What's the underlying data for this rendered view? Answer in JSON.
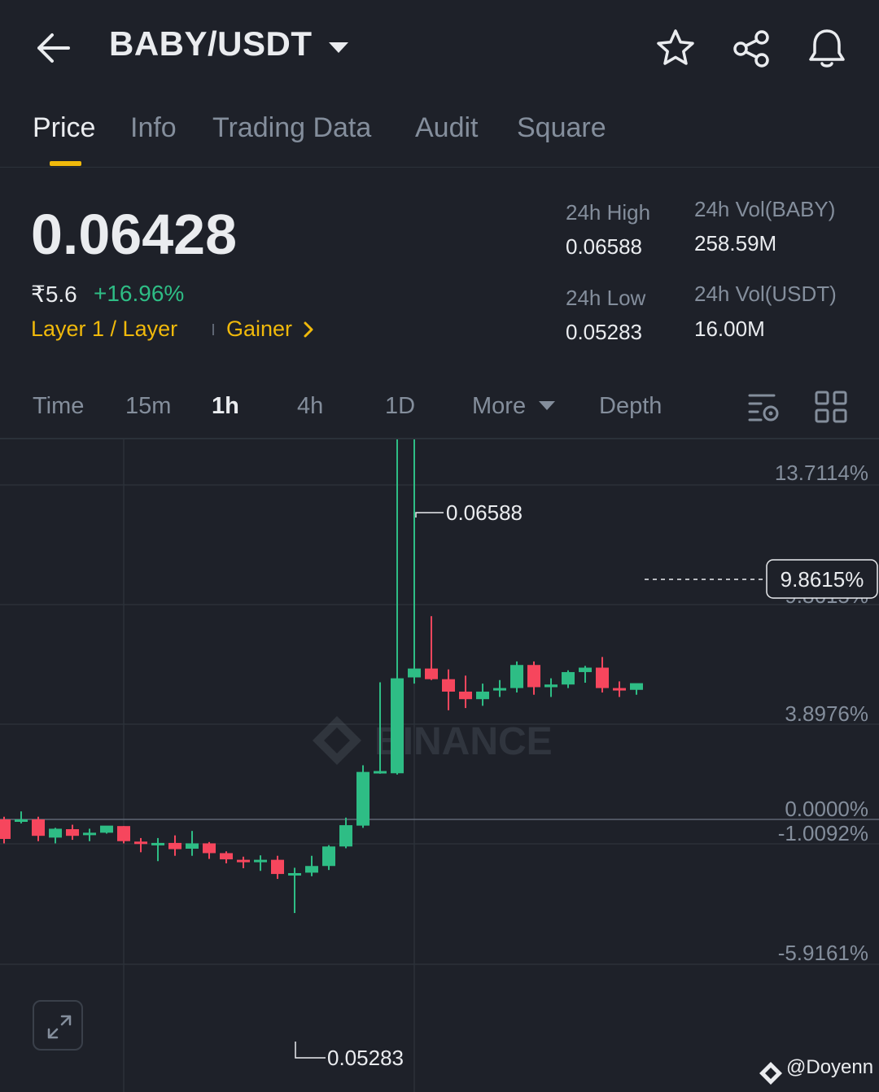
{
  "header": {
    "pair": "BABY/USDT",
    "icons": [
      "back-arrow-icon",
      "caret-down-icon",
      "star-icon",
      "share-icon",
      "bell-icon"
    ]
  },
  "tabs": [
    {
      "label": "Price",
      "active": true
    },
    {
      "label": "Info",
      "active": false
    },
    {
      "label": "Trading Data",
      "active": false
    },
    {
      "label": "Audit",
      "active": false
    },
    {
      "label": "Square",
      "active": false
    }
  ],
  "price": {
    "last": "0.06428",
    "fiat": "₹5.6",
    "change": "+16.96%",
    "tag_category": "Layer 1 / Layer",
    "tag_gainer": "Gainer"
  },
  "stats": {
    "high_label": "24h High",
    "high_value": "0.06588",
    "low_label": "24h Low",
    "low_value": "0.05283",
    "vol_base_label": "24h Vol(BABY)",
    "vol_base_value": "258.59M",
    "vol_quote_label": "24h Vol(USDT)",
    "vol_quote_value": "16.00M"
  },
  "intervals": {
    "time": "Time",
    "m15": "15m",
    "h1": "1h",
    "h4": "4h",
    "d1": "1D",
    "more": "More",
    "depth": "Depth",
    "active": "1h"
  },
  "colors": {
    "up": "#2ebd85",
    "down": "#f6465d",
    "accent": "#f0b90b",
    "bg": "#1e2129"
  },
  "chart_data": {
    "type": "candlestick",
    "watermark": "BINANCE",
    "y_axis_labels": [
      "13.7114%",
      "9.8615%",
      "3.8976%",
      "0.0000%",
      "-1.0092%",
      "-5.9161%"
    ],
    "current_change_label": "9.8615%",
    "high_marker": "0.06588",
    "low_marker": "0.05283",
    "reference_price": 0.05494,
    "candles": [
      {
        "o": 0.05494,
        "h": 0.055,
        "l": 0.0544,
        "c": 0.0545
      },
      {
        "o": 0.05494,
        "h": 0.05512,
        "l": 0.05485,
        "c": 0.05494
      },
      {
        "o": 0.05494,
        "h": 0.055,
        "l": 0.05445,
        "c": 0.05457
      },
      {
        "o": 0.05453,
        "h": 0.05475,
        "l": 0.0544,
        "c": 0.05473
      },
      {
        "o": 0.05472,
        "h": 0.05482,
        "l": 0.05448,
        "c": 0.05457
      },
      {
        "o": 0.0546,
        "h": 0.05473,
        "l": 0.05445,
        "c": 0.05464
      },
      {
        "o": 0.05464,
        "h": 0.05478,
        "l": 0.05462,
        "c": 0.0548
      },
      {
        "o": 0.05479,
        "h": 0.05479,
        "l": 0.0544,
        "c": 0.05445
      },
      {
        "o": 0.05444,
        "h": 0.05452,
        "l": 0.0542,
        "c": 0.0544
      },
      {
        "o": 0.0544,
        "h": 0.05452,
        "l": 0.054,
        "c": 0.05441
      },
      {
        "o": 0.05441,
        "h": 0.05458,
        "l": 0.05412,
        "c": 0.05427
      },
      {
        "o": 0.05428,
        "h": 0.05468,
        "l": 0.05412,
        "c": 0.0544
      },
      {
        "o": 0.0544,
        "h": 0.05443,
        "l": 0.05405,
        "c": 0.05418
      },
      {
        "o": 0.05418,
        "h": 0.05422,
        "l": 0.05395,
        "c": 0.05404
      },
      {
        "o": 0.05403,
        "h": 0.0541,
        "l": 0.05384,
        "c": 0.05399
      },
      {
        "o": 0.05398,
        "h": 0.05413,
        "l": 0.05378,
        "c": 0.05403
      },
      {
        "o": 0.05403,
        "h": 0.05412,
        "l": 0.0536,
        "c": 0.05371
      },
      {
        "o": 0.05371,
        "h": 0.05385,
        "l": 0.05283,
        "c": 0.05373
      },
      {
        "o": 0.05374,
        "h": 0.05412,
        "l": 0.05366,
        "c": 0.05389
      },
      {
        "o": 0.05389,
        "h": 0.05436,
        "l": 0.0538,
        "c": 0.05433
      },
      {
        "o": 0.05433,
        "h": 0.05498,
        "l": 0.05429,
        "c": 0.05481
      },
      {
        "o": 0.0548,
        "h": 0.05616,
        "l": 0.05475,
        "c": 0.05601
      },
      {
        "o": 0.05603,
        "h": 0.05803,
        "l": 0.05597,
        "c": 0.05603
      },
      {
        "o": 0.05598,
        "h": 0.0654,
        "l": 0.05595,
        "c": 0.05812
      },
      {
        "o": 0.05814,
        "h": 0.06588,
        "l": 0.058,
        "c": 0.05834
      },
      {
        "o": 0.05834,
        "h": 0.05952,
        "l": 0.05808,
        "c": 0.0581
      },
      {
        "o": 0.0581,
        "h": 0.05832,
        "l": 0.0574,
        "c": 0.05782
      },
      {
        "o": 0.05782,
        "h": 0.05818,
        "l": 0.05745,
        "c": 0.05765
      },
      {
        "o": 0.05765,
        "h": 0.058,
        "l": 0.0575,
        "c": 0.05782
      },
      {
        "o": 0.05786,
        "h": 0.05808,
        "l": 0.0577,
        "c": 0.0579
      },
      {
        "o": 0.0579,
        "h": 0.0585,
        "l": 0.0578,
        "c": 0.05842
      },
      {
        "o": 0.05842,
        "h": 0.0585,
        "l": 0.05775,
        "c": 0.05792
      },
      {
        "o": 0.05792,
        "h": 0.05812,
        "l": 0.0577,
        "c": 0.05798
      },
      {
        "o": 0.05798,
        "h": 0.0583,
        "l": 0.0579,
        "c": 0.05826
      },
      {
        "o": 0.05826,
        "h": 0.0584,
        "l": 0.05802,
        "c": 0.05836
      },
      {
        "o": 0.05836,
        "h": 0.0586,
        "l": 0.0578,
        "c": 0.0579
      },
      {
        "o": 0.0579,
        "h": 0.05805,
        "l": 0.0577,
        "c": 0.05788
      },
      {
        "o": 0.05786,
        "h": 0.058,
        "l": 0.05775,
        "c": 0.05801
      }
    ]
  },
  "credit": "@Doyenn"
}
